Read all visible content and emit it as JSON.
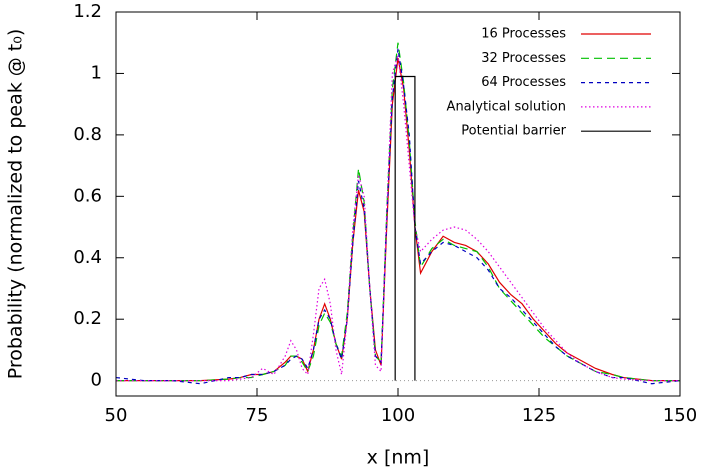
{
  "chart_data": {
    "type": "line",
    "xlabel": "x [nm]",
    "ylabel": "Probability (normalized to peak @ t₀)",
    "x": [
      50,
      55,
      60,
      65,
      70,
      72,
      74,
      76,
      78,
      80,
      81,
      82,
      83,
      84,
      85,
      86,
      87,
      88,
      89,
      90,
      91,
      92,
      93,
      94,
      95,
      96,
      97,
      98,
      99,
      100,
      101,
      102,
      103,
      104,
      106,
      108,
      110,
      112,
      114,
      116,
      118,
      120,
      122,
      124,
      126,
      128,
      130,
      132,
      135,
      138,
      140,
      145,
      150
    ],
    "series": [
      {
        "name": "16 Processes",
        "color": "#e00000",
        "values": [
          0,
          0,
          0,
          0,
          0.005,
          0.01,
          0.02,
          0.02,
          0.03,
          0.06,
          0.08,
          0.08,
          0.07,
          0.03,
          0.1,
          0.2,
          0.25,
          0.2,
          0.12,
          0.07,
          0.2,
          0.45,
          0.62,
          0.55,
          0.3,
          0.1,
          0.05,
          0.5,
          0.9,
          1.05,
          0.95,
          0.75,
          0.5,
          0.35,
          0.42,
          0.47,
          0.45,
          0.44,
          0.42,
          0.38,
          0.32,
          0.28,
          0.25,
          0.2,
          0.16,
          0.12,
          0.09,
          0.07,
          0.04,
          0.02,
          0.01,
          0,
          0
        ]
      },
      {
        "name": "32 Processes",
        "color": "#00c000",
        "values": [
          0,
          0,
          0,
          0,
          0.005,
          0.01,
          0.01,
          0.02,
          0.03,
          0.05,
          0.08,
          0.08,
          0.06,
          0.03,
          0.08,
          0.18,
          0.22,
          0.19,
          0.12,
          0.08,
          0.22,
          0.48,
          0.69,
          0.58,
          0.3,
          0.08,
          0.06,
          0.55,
          0.95,
          1.1,
          0.97,
          0.78,
          0.52,
          0.37,
          0.43,
          0.46,
          0.44,
          0.43,
          0.42,
          0.37,
          0.3,
          0.26,
          0.22,
          0.18,
          0.14,
          0.11,
          0.08,
          0.06,
          0.03,
          0.02,
          0.01,
          0,
          0
        ]
      },
      {
        "name": "64 Processes",
        "color": "#0000c0",
        "values": [
          0.01,
          0,
          0,
          -0.01,
          0.01,
          0.01,
          0.02,
          0.02,
          0.03,
          0.05,
          0.07,
          0.08,
          0.07,
          0.04,
          0.1,
          0.2,
          0.23,
          0.2,
          0.12,
          0.07,
          0.2,
          0.45,
          0.65,
          0.56,
          0.3,
          0.08,
          0.06,
          0.52,
          0.92,
          1.08,
          0.96,
          0.8,
          0.5,
          0.38,
          0.42,
          0.45,
          0.44,
          0.42,
          0.4,
          0.36,
          0.3,
          0.27,
          0.23,
          0.19,
          0.15,
          0.11,
          0.08,
          0.06,
          0.03,
          0.01,
          0.01,
          -0.01,
          0
        ]
      },
      {
        "name": "Analytical solution",
        "color": "#e000e0",
        "values": [
          0,
          0,
          0,
          0,
          0,
          0.005,
          0.01,
          0.04,
          0.02,
          0.08,
          0.13,
          0.1,
          0.04,
          0.02,
          0.15,
          0.3,
          0.33,
          0.25,
          0.1,
          0.02,
          0.2,
          0.5,
          0.67,
          0.6,
          0.3,
          0.05,
          0.03,
          0.55,
          1.0,
          1.06,
          0.9,
          0.7,
          0.5,
          0.42,
          0.46,
          0.49,
          0.5,
          0.49,
          0.46,
          0.42,
          0.37,
          0.32,
          0.27,
          0.22,
          0.17,
          0.13,
          0.09,
          0.06,
          0.03,
          0.01,
          0.005,
          0,
          0
        ]
      },
      {
        "name": "Potential barrier",
        "color": "#000000",
        "x": [
          99.5,
          99.5,
          103,
          103
        ],
        "values": [
          0,
          0.99,
          0.99,
          0
        ]
      }
    ],
    "xlim": [
      50,
      150
    ],
    "xticks": [
      50,
      75,
      100,
      125,
      150
    ],
    "ylim": [
      -0.05,
      1.2
    ],
    "yticks": [
      0,
      0.2,
      0.4,
      0.6,
      0.8,
      1,
      1.2
    ],
    "zero_line": true,
    "grid": false,
    "legend": "top-right"
  }
}
